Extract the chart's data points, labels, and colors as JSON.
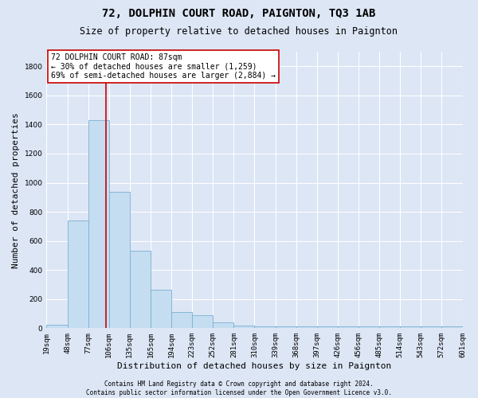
{
  "title": "72, DOLPHIN COURT ROAD, PAIGNTON, TQ3 1AB",
  "subtitle": "Size of property relative to detached houses in Paignton",
  "xlabel": "Distribution of detached houses by size in Paignton",
  "ylabel": "Number of detached properties",
  "footer_line1": "Contains HM Land Registry data © Crown copyright and database right 2024.",
  "footer_line2": "Contains public sector information licensed under the Open Government Licence v3.0.",
  "bin_labels": [
    "19sqm",
    "48sqm",
    "77sqm",
    "106sqm",
    "135sqm",
    "165sqm",
    "194sqm",
    "223sqm",
    "252sqm",
    "281sqm",
    "310sqm",
    "339sqm",
    "368sqm",
    "397sqm",
    "426sqm",
    "456sqm",
    "485sqm",
    "514sqm",
    "543sqm",
    "572sqm",
    "601sqm"
  ],
  "bar_heights": [
    25,
    740,
    1430,
    935,
    530,
    265,
    110,
    90,
    40,
    20,
    15,
    15,
    15,
    15,
    15,
    15,
    15,
    15,
    15,
    15
  ],
  "bar_color": "#c5ddf0",
  "bar_edge_color": "#7bafd4",
  "vline_color": "#cc0000",
  "vline_x_bin": 2.87,
  "annotation_text": "72 DOLPHIN COURT ROAD: 87sqm\n← 30% of detached houses are smaller (1,259)\n69% of semi-detached houses are larger (2,884) →",
  "annotation_box_facecolor": "white",
  "annotation_box_edgecolor": "#cc0000",
  "ylim": [
    0,
    1900
  ],
  "yticks": [
    0,
    200,
    400,
    600,
    800,
    1000,
    1200,
    1400,
    1600,
    1800
  ],
  "bg_color": "#dce6f5",
  "plot_bg_color": "#dce6f5",
  "grid_color": "white",
  "title_fontsize": 10,
  "subtitle_fontsize": 8.5,
  "ylabel_fontsize": 8,
  "xlabel_fontsize": 8,
  "tick_fontsize": 6.5,
  "annotation_fontsize": 7,
  "footer_fontsize": 5.5
}
